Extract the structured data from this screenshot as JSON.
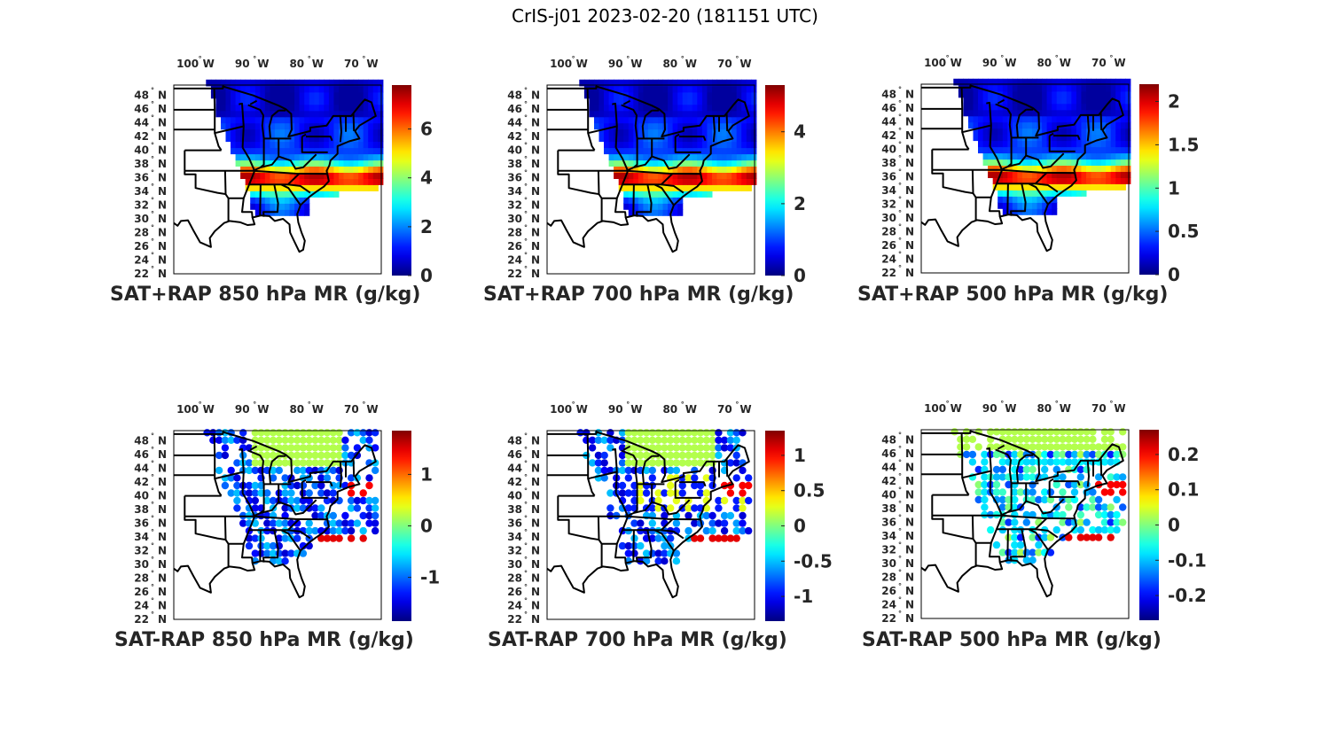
{
  "suptitle": "CrIS-j01 2023-02-20 (181151 UTC)",
  "chart_data": [
    {
      "type": "heatmap",
      "title": "SAT+RAP 850 hPa MR (g/kg)",
      "colormap": "jet",
      "clim": [
        0,
        7.8
      ],
      "colorbar_ticks": [
        0,
        2,
        4,
        6
      ],
      "colorbar_tick_labels": [
        "0",
        "2",
        "4",
        "6"
      ],
      "lon_tick_labels": [
        "100° W",
        "90° W",
        "80° W",
        "70° W"
      ],
      "lat_tick_labels": [
        "48° N",
        "46° N",
        "44° N",
        "42° N",
        "40° N",
        "38° N",
        "36° N",
        "34° N",
        "32° N",
        "30° N",
        "28° N",
        "26° N",
        "24° N",
        "22° N"
      ],
      "xlim": [
        -104,
        -66
      ],
      "ylim": [
        22,
        49.5
      ],
      "field": "sum"
    },
    {
      "type": "heatmap",
      "title": "SAT+RAP 700 hPa MR (g/kg)",
      "colormap": "jet",
      "clim": [
        0,
        5.3
      ],
      "colorbar_ticks": [
        0,
        2,
        4
      ],
      "colorbar_tick_labels": [
        "0",
        "2",
        "4"
      ],
      "lon_tick_labels": [
        "100° W",
        "90° W",
        "80° W",
        "70° W"
      ],
      "lat_tick_labels": [
        "48° N",
        "46° N",
        "44° N",
        "42° N",
        "40° N",
        "38° N",
        "36° N",
        "34° N",
        "32° N",
        "30° N",
        "28° N",
        "26° N",
        "24° N",
        "22° N"
      ],
      "xlim": [
        -104,
        -66
      ],
      "ylim": [
        22,
        49.5
      ],
      "field": "sum"
    },
    {
      "type": "heatmap",
      "title": "SAT+RAP 500 hPa MR (g/kg)",
      "colormap": "jet",
      "clim": [
        0,
        2.2
      ],
      "colorbar_ticks": [
        0,
        0.5,
        1,
        1.5,
        2
      ],
      "colorbar_tick_labels": [
        "0",
        "0.5",
        "1",
        "1.5",
        "2"
      ],
      "lon_tick_labels": [
        "100° W",
        "90° W",
        "80° W",
        "70° W"
      ],
      "lat_tick_labels": [
        "48° N",
        "46° N",
        "44° N",
        "42° N",
        "40° N",
        "38° N",
        "36° N",
        "34° N",
        "32° N",
        "30° N",
        "28° N",
        "26° N",
        "24° N",
        "22° N"
      ],
      "xlim": [
        -104,
        -66
      ],
      "ylim": [
        22,
        49.5
      ],
      "field": "sum"
    },
    {
      "type": "heatmap",
      "title": "SAT-RAP 850 hPa MR (g/kg)",
      "colormap": "jet",
      "clim": [
        -1.85,
        1.85
      ],
      "colorbar_ticks": [
        -1,
        0,
        1
      ],
      "colorbar_tick_labels": [
        "-1",
        "0",
        "1"
      ],
      "lon_tick_labels": [
        "100° W",
        "90° W",
        "80° W",
        "70° W"
      ],
      "lat_tick_labels": [
        "48° N",
        "46° N",
        "44° N",
        "42° N",
        "40° N",
        "38° N",
        "36° N",
        "34° N",
        "32° N",
        "30° N",
        "28° N",
        "26° N",
        "24° N",
        "22° N"
      ],
      "xlim": [
        -104,
        -66
      ],
      "ylim": [
        22,
        49.5
      ],
      "field": "diff"
    },
    {
      "type": "heatmap",
      "title": "SAT-RAP 700 hPa MR (g/kg)",
      "colormap": "jet",
      "clim": [
        -1.35,
        1.35
      ],
      "colorbar_ticks": [
        -1,
        -0.5,
        0,
        0.5,
        1
      ],
      "colorbar_tick_labels": [
        "-1",
        "-0.5",
        "0",
        "0.5",
        "1"
      ],
      "lon_tick_labels": [
        "100° W",
        "90° W",
        "80° W",
        "70° W"
      ],
      "lat_tick_labels": [
        "48° N",
        "46° N",
        "44° N",
        "42° N",
        "40° N",
        "38° N",
        "36° N",
        "34° N",
        "32° N",
        "30° N",
        "28° N",
        "26° N",
        "24° N",
        "22° N"
      ],
      "xlim": [
        -104,
        -66
      ],
      "ylim": [
        22,
        49.5
      ],
      "field": "diff"
    },
    {
      "type": "heatmap",
      "title": "SAT-RAP 500 hPa MR (g/kg)",
      "colormap": "jet",
      "clim": [
        -0.27,
        0.27
      ],
      "colorbar_ticks": [
        -0.2,
        -0.1,
        0,
        0.1,
        0.2
      ],
      "colorbar_tick_labels": [
        "-0.2",
        "-0.1",
        "0",
        "0.1",
        "0.2"
      ],
      "lon_tick_labels": [
        "100° W",
        "90° W",
        "80° W",
        "70° W"
      ],
      "lat_tick_labels": [
        "48° N",
        "46° N",
        "44° N",
        "42° N",
        "40° N",
        "38° N",
        "36° N",
        "34° N",
        "32° N",
        "30° N",
        "28° N",
        "26° N",
        "24° N",
        "22° N"
      ],
      "xlim": [
        -104,
        -66
      ],
      "ylim": [
        22,
        49.5
      ],
      "field": "diff"
    }
  ]
}
